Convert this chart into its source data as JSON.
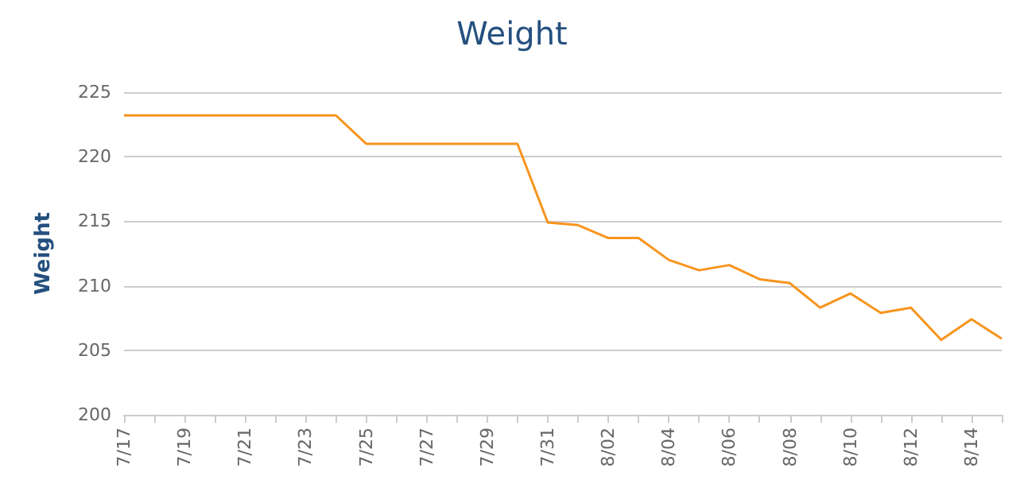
{
  "chart_data": {
    "type": "line",
    "title": "Weight",
    "ylabel": "Weight",
    "categories": [
      "7/17",
      null,
      "7/19",
      null,
      "7/21",
      null,
      "7/23",
      null,
      "7/25",
      null,
      "7/27",
      null,
      "7/29",
      null,
      "7/31",
      null,
      "8/02",
      null,
      "8/04",
      null,
      "8/06",
      null,
      "8/08",
      null,
      "8/10",
      null,
      "8/12",
      null,
      "8/14",
      null
    ],
    "series": [
      {
        "color": "#f7941d",
        "values": [
          223.2,
          223.2,
          223.2,
          223.2,
          223.2,
          223.2,
          223.2,
          223.2,
          221.0,
          221.0,
          221.0,
          221.0,
          221.0,
          221.0,
          214.9,
          214.7,
          213.7,
          213.7,
          212.0,
          211.2,
          211.6,
          210.5,
          210.2,
          208.3,
          209.4,
          207.9,
          208.3,
          205.8,
          207.4,
          205.9
        ]
      }
    ],
    "ylim": [
      200,
      225
    ],
    "yticks": [
      200,
      205,
      210,
      215,
      220,
      225
    ],
    "grid": "y",
    "marker": "none",
    "line_style": "solid"
  }
}
